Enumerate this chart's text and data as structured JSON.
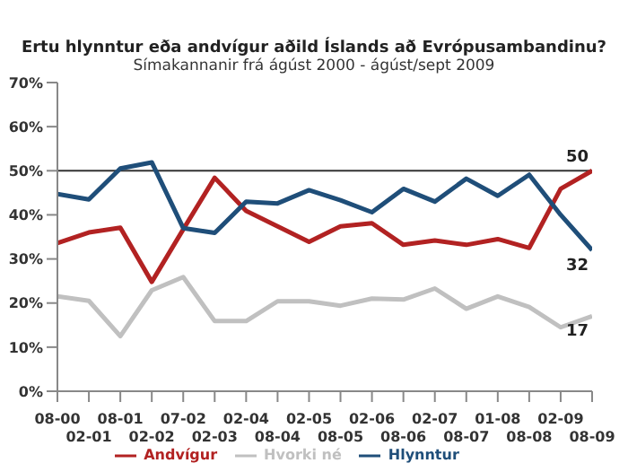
{
  "chart_data": {
    "type": "line",
    "title": "Ertu hlynntur eða andvígur aðild Íslands að Evrópusambandinu?",
    "subtitle": "Símakannanir frá ágúst 2000 - ágúst/sept 2009",
    "categories": [
      "08-00",
      "02-01",
      "08-01",
      "02-02",
      "07-02",
      "02-03",
      "02-04",
      "08-04",
      "02-05",
      "08-05",
      "02-06",
      "08-06",
      "02-07",
      "08-07",
      "01-08",
      "08-08",
      "02-09",
      "08-09"
    ],
    "series": [
      {
        "name": "Andvígur",
        "color": "#b22222",
        "values": [
          33.6,
          36,
          37.1,
          24.8,
          36.7,
          48.4,
          40.9,
          37.4,
          33.9,
          37.4,
          38.1,
          33.2,
          34.2,
          33.2,
          34.5,
          32.5,
          45.9,
          50
        ],
        "value_labels": [
          null,
          null,
          null,
          null,
          null,
          null,
          null,
          null,
          null,
          null,
          null,
          null,
          null,
          null,
          null,
          null,
          null,
          "50"
        ]
      },
      {
        "name": "Hvorki né",
        "color": "#c0c0c0",
        "values": [
          21.5,
          20.5,
          12.5,
          22.9,
          25.9,
          15.9,
          15.9,
          20.4,
          20.4,
          19.4,
          21,
          20.8,
          23.3,
          18.7,
          21.5,
          19.1,
          14.5,
          17
        ],
        "value_labels": [
          null,
          null,
          null,
          null,
          null,
          null,
          null,
          null,
          null,
          null,
          null,
          null,
          null,
          null,
          null,
          null,
          null,
          "17"
        ]
      },
      {
        "name": "Hlynntur",
        "color": "#1f4e79",
        "values": [
          44.7,
          43.5,
          50.5,
          51.9,
          37,
          35.9,
          43,
          42.6,
          45.6,
          43.3,
          40.6,
          45.9,
          43,
          48.2,
          44.3,
          49.1,
          40,
          32
        ],
        "value_labels": [
          null,
          null,
          null,
          null,
          null,
          null,
          null,
          null,
          null,
          null,
          null,
          null,
          null,
          null,
          null,
          null,
          null,
          "32"
        ]
      }
    ],
    "ylim": [
      0,
      70
    ],
    "yticks": [
      {
        "value": 0,
        "label": "0%"
      },
      {
        "value": 10,
        "label": "10%"
      },
      {
        "value": 20,
        "label": "20%"
      },
      {
        "value": 30,
        "label": "30%"
      },
      {
        "value": 40,
        "label": "40%"
      },
      {
        "value": 50,
        "label": "50%"
      },
      {
        "value": 60,
        "label": "60%"
      },
      {
        "value": 70,
        "label": "70%"
      }
    ],
    "ref_lines": [
      {
        "axis": "y",
        "value": 50,
        "color": "#333333"
      }
    ],
    "grid": false,
    "legend": "bottom",
    "marker": "none",
    "line_style": "solid"
  }
}
